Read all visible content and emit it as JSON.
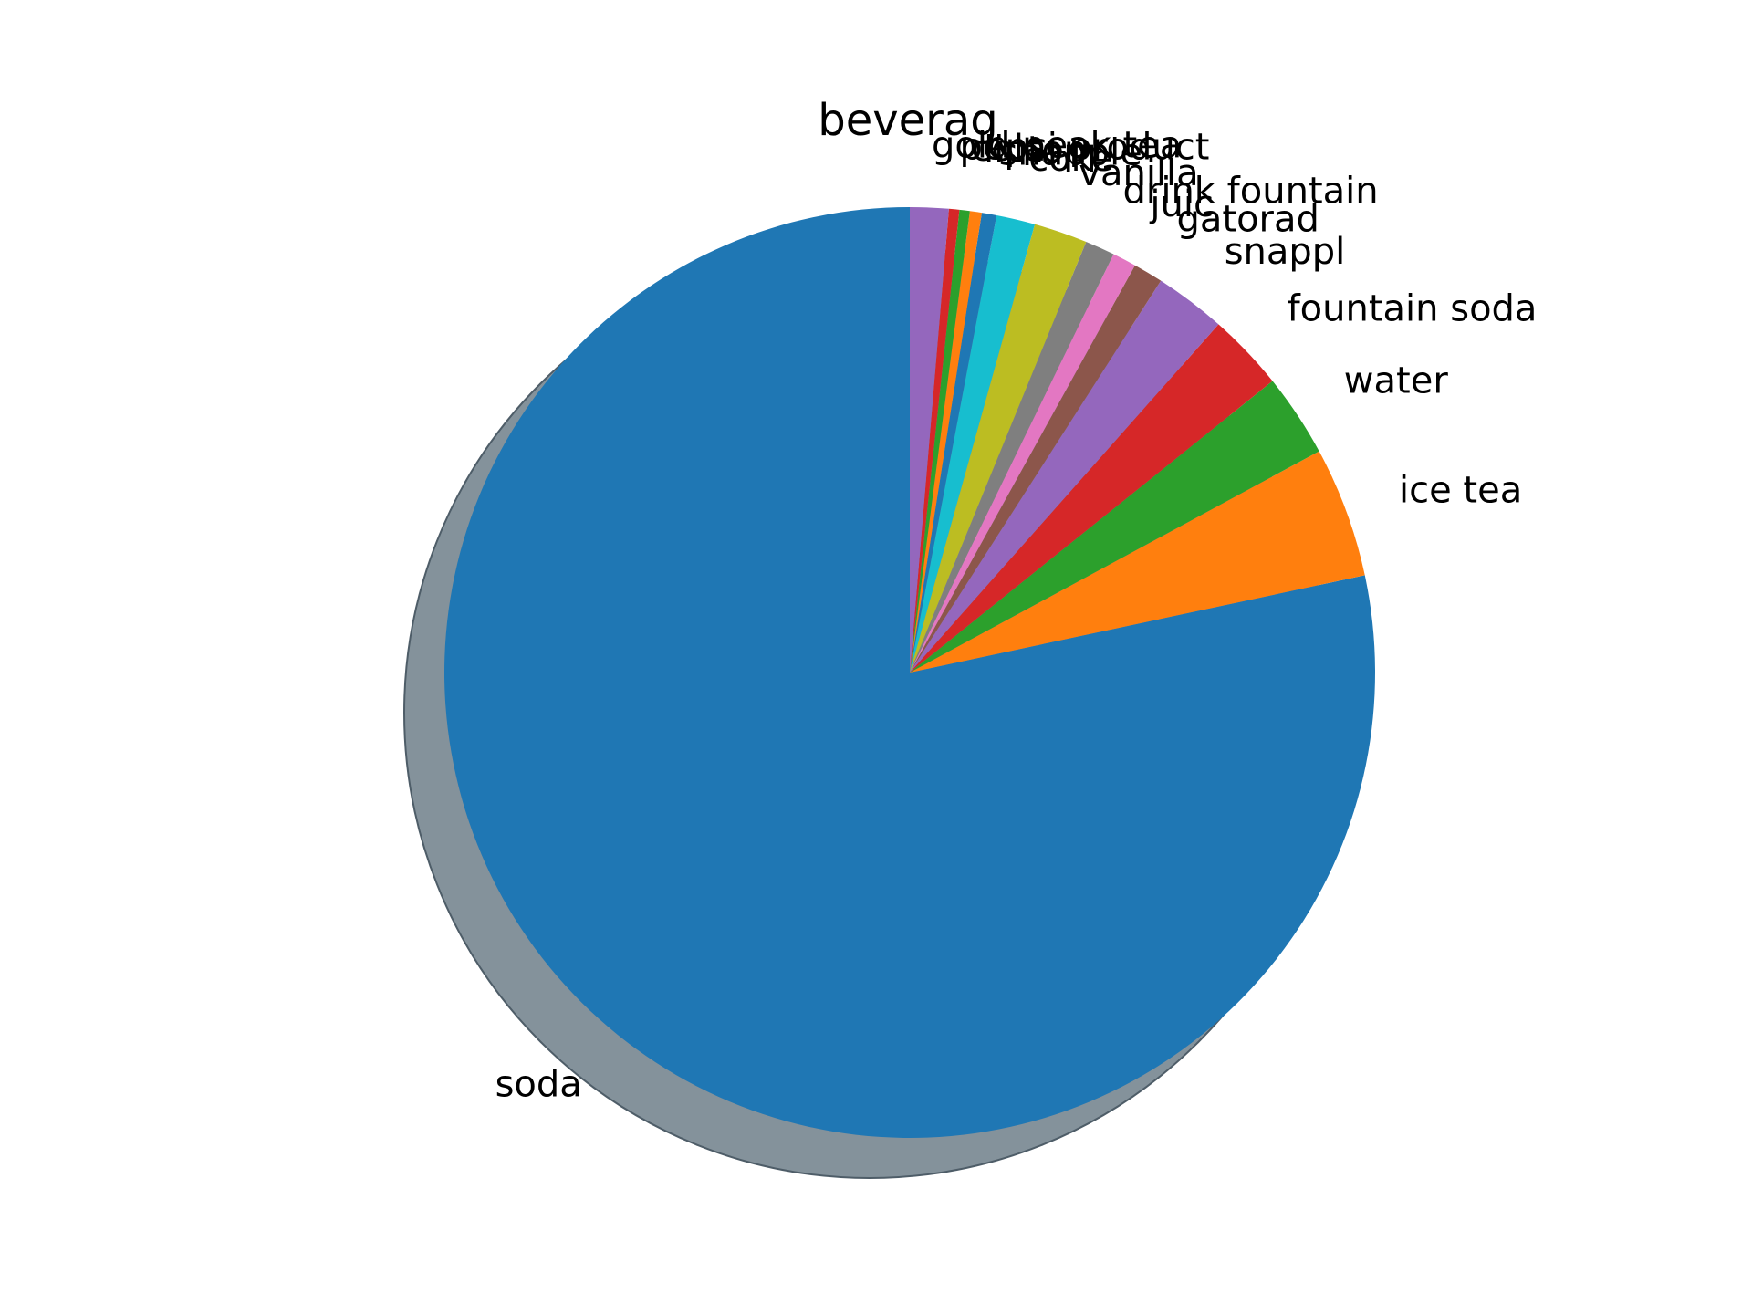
{
  "chart_data": {
    "type": "pie",
    "title": "beverag",
    "shadow": true,
    "start_angle_deg": 90,
    "direction": "counterclockwise",
    "slices": [
      {
        "label": "soda",
        "value": 76.0,
        "color": "#1f77b4"
      },
      {
        "label": "ice tea",
        "value": 4.4,
        "color": "#ff7f0e"
      },
      {
        "label": "water",
        "value": 2.8,
        "color": "#2ca02c"
      },
      {
        "label": "fountain soda",
        "value": 2.6,
        "color": "#d62728"
      },
      {
        "label": "snappl",
        "value": 2.4,
        "color": "#9467bd"
      },
      {
        "label": "gatorad",
        "value": 1.0,
        "color": "#8c564b"
      },
      {
        "label": "juic",
        "value": 0.8,
        "color": "#e377c2"
      },
      {
        "label": "drink fountain",
        "value": 1.0,
        "color": "#7f7f7f"
      },
      {
        "label": "vanilla",
        "value": 1.8,
        "color": "#bcbd22"
      },
      {
        "label": "coke",
        "value": 1.3,
        "color": "#17becf"
      },
      {
        "label": "snapple",
        "value": 0.5,
        "color": "#1f77b4"
      },
      {
        "label": "lipton",
        "value": 0.4,
        "color": "#ff7f0e"
      },
      {
        "label": "cola",
        "value": 0.35,
        "color": "#2ca02c"
      },
      {
        "label": "pepsi product",
        "value": 0.35,
        "color": "#d62728"
      },
      {
        "label": "gold peak tea",
        "value": 1.3,
        "color": "#9467bd"
      }
    ]
  }
}
